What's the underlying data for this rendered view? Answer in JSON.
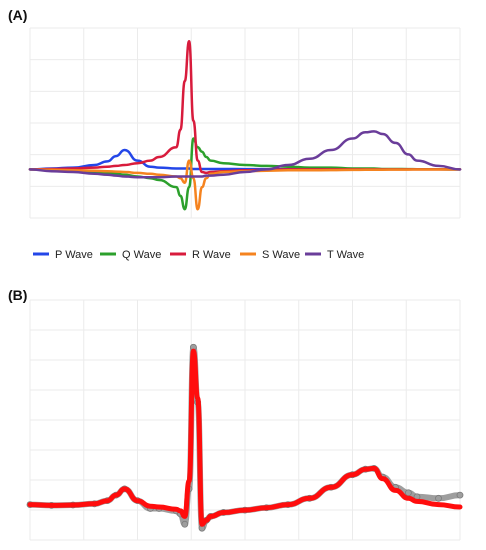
{
  "panels": {
    "a_label": "(A)",
    "b_label": "(B)"
  },
  "chart_data": [
    {
      "type": "line",
      "panel": "(A)",
      "title": "",
      "xlabel": "",
      "ylabel": "",
      "grid": true,
      "legend": "bottom",
      "x": [
        0.0,
        0.05,
        0.1,
        0.15,
        0.18,
        0.2,
        0.22,
        0.25,
        0.28,
        0.3,
        0.34,
        0.35,
        0.36,
        0.37,
        0.38,
        0.39,
        0.4,
        0.41,
        0.42,
        0.45,
        0.5,
        0.55,
        0.6,
        0.65,
        0.7,
        0.75,
        0.78,
        0.8,
        0.82,
        0.85,
        0.88,
        0.9,
        0.95,
        1.0
      ],
      "series": [
        {
          "name": "P Wave",
          "color": "#2346e8",
          "values": [
            0,
            0.01,
            0.02,
            0.05,
            0.09,
            0.15,
            0.22,
            0.1,
            0.03,
            0.02,
            0.01,
            0.01,
            0.01,
            0.01,
            0.005,
            0.005,
            0.005,
            0.005,
            0.005,
            0.004,
            0.003,
            0.003,
            0.002,
            0.002,
            0.002,
            0.002,
            0.001,
            0.001,
            0.001,
            0.001,
            0.001,
            0.001,
            0.001,
            0
          ]
        },
        {
          "name": "Q Wave",
          "color": "#2ca02c",
          "values": [
            0,
            -0.01,
            -0.02,
            -0.03,
            -0.04,
            -0.05,
            -0.06,
            -0.08,
            -0.1,
            -0.12,
            -0.2,
            -0.3,
            -0.45,
            -0.2,
            0.35,
            0.25,
            0.2,
            0.14,
            0.1,
            0.07,
            0.05,
            0.04,
            0.03,
            0.02,
            0.02,
            0.01,
            0.01,
            0.01,
            0.005,
            0.005,
            0.003,
            0.002,
            0.001,
            0
          ]
        },
        {
          "name": "R Wave",
          "color": "#d81b3c",
          "values": [
            0,
            0.005,
            0.01,
            0.02,
            0.03,
            0.04,
            0.05,
            0.07,
            0.1,
            0.14,
            0.25,
            0.45,
            1.0,
            1.45,
            0.55,
            0.1,
            -0.03,
            -0.04,
            -0.03,
            -0.02,
            -0.01,
            -0.005,
            0,
            0,
            0,
            0,
            0,
            0,
            0,
            0,
            0,
            0,
            0,
            0
          ]
        },
        {
          "name": "S Wave",
          "color": "#f5831f",
          "values": [
            0,
            -0.005,
            -0.01,
            -0.015,
            -0.02,
            -0.025,
            -0.03,
            -0.04,
            -0.05,
            -0.06,
            -0.08,
            -0.1,
            -0.15,
            0.1,
            -0.1,
            -0.45,
            -0.2,
            -0.1,
            -0.05,
            -0.03,
            -0.02,
            -0.015,
            -0.01,
            -0.01,
            -0.008,
            -0.006,
            -0.005,
            -0.004,
            -0.003,
            -0.002,
            -0.002,
            -0.001,
            -0.001,
            0
          ]
        },
        {
          "name": "T Wave",
          "color": "#6a3d9a",
          "values": [
            0,
            -0.02,
            -0.03,
            -0.05,
            -0.06,
            -0.07,
            -0.08,
            -0.09,
            -0.09,
            -0.09,
            -0.08,
            -0.08,
            -0.08,
            -0.08,
            -0.08,
            -0.08,
            -0.08,
            -0.07,
            -0.07,
            -0.06,
            -0.03,
            0.0,
            0.05,
            0.12,
            0.22,
            0.35,
            0.42,
            0.43,
            0.4,
            0.3,
            0.17,
            0.1,
            0.04,
            0
          ]
        }
      ],
      "ylim": [
        -0.55,
        1.6
      ]
    },
    {
      "type": "line",
      "panel": "(B)",
      "title": "",
      "xlabel": "",
      "ylabel": "",
      "grid": true,
      "legend": "none",
      "x": [
        0.0,
        0.05,
        0.1,
        0.15,
        0.18,
        0.2,
        0.22,
        0.25,
        0.28,
        0.3,
        0.34,
        0.35,
        0.36,
        0.37,
        0.38,
        0.39,
        0.4,
        0.41,
        0.42,
        0.45,
        0.5,
        0.55,
        0.6,
        0.65,
        0.7,
        0.75,
        0.78,
        0.8,
        0.82,
        0.85,
        0.88,
        0.9,
        0.95,
        1.0
      ],
      "series": [
        {
          "name": "",
          "color": "#9e9e9e",
          "values": [
            0,
            -0.01,
            -0.005,
            0.01,
            0.05,
            0.12,
            0.2,
            0.05,
            -0.05,
            -0.05,
            -0.08,
            -0.12,
            -0.25,
            0.2,
            2.0,
            1.3,
            -0.3,
            -0.2,
            -0.15,
            -0.1,
            -0.07,
            -0.04,
            0,
            0.08,
            0.22,
            0.38,
            0.45,
            0.46,
            0.35,
            0.22,
            0.15,
            0.1,
            0.08,
            0.12
          ]
        },
        {
          "name": "",
          "color": "#ff0d0d",
          "values": [
            0,
            -0.01,
            -0.005,
            0.01,
            0.05,
            0.12,
            0.2,
            0.05,
            -0.02,
            -0.03,
            -0.06,
            -0.08,
            -0.15,
            0.3,
            1.95,
            1.35,
            -0.25,
            -0.2,
            -0.15,
            -0.1,
            -0.07,
            -0.04,
            0,
            0.08,
            0.22,
            0.38,
            0.45,
            0.46,
            0.33,
            0.18,
            0.08,
            0.04,
            -0.0,
            -0.03
          ]
        }
      ],
      "ylim": [
        -0.45,
        2.6
      ]
    }
  ]
}
